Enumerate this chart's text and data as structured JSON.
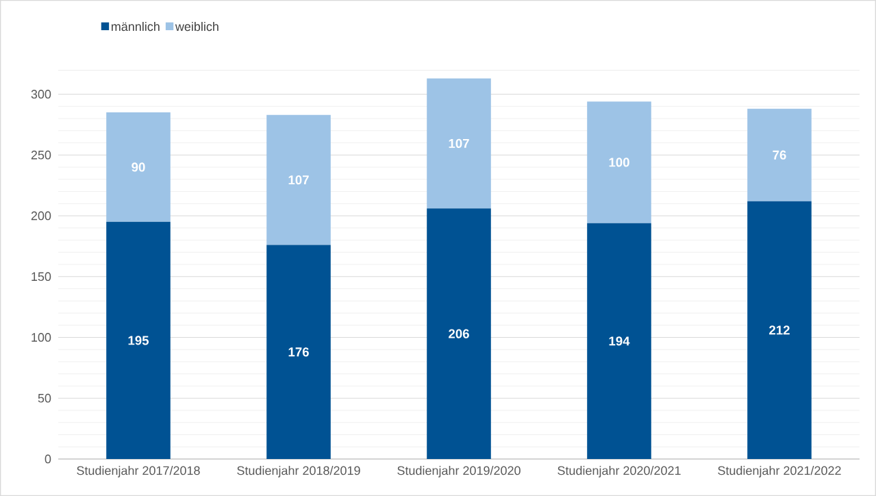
{
  "chart_data": {
    "type": "bar",
    "stacked": true,
    "categories": [
      "Studienjahr 2017/2018",
      "Studienjahr 2018/2019",
      "Studienjahr 2019/2020",
      "Studienjahr 2020/2021",
      "Studienjahr 2021/2022"
    ],
    "series": [
      {
        "name": "männlich",
        "color": "#005293",
        "values": [
          195,
          176,
          206,
          194,
          212
        ]
      },
      {
        "name": "weiblich",
        "color": "#9dc3e6",
        "values": [
          90,
          107,
          107,
          100,
          76
        ]
      }
    ],
    "ylim": [
      0,
      320
    ],
    "yticks": [
      0,
      50,
      100,
      150,
      200,
      250,
      300
    ],
    "grid": "y",
    "legend": "top left",
    "data_labels": true
  }
}
